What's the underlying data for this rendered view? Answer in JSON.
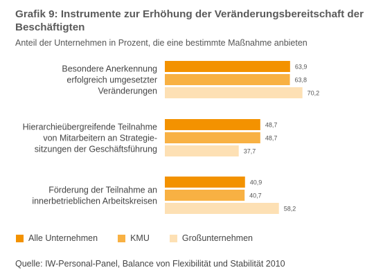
{
  "title": "Grafik 9: Instrumente zur Erhöhung der Veränderungsbereitschaft der Beschäftigten",
  "subtitle": "Anteil der Unternehmen in Prozent, die eine bestimmte Maßnahme anbieten",
  "source": "Quelle: IW-Personal-Panel, Balance von Flexibilität und Stabilität 2010",
  "chart_data": {
    "type": "bar",
    "orientation": "horizontal",
    "title": "Grafik 9: Instrumente zur Erhöhung der Veränderungsbereitschaft der Beschäftigten",
    "subtitle": "Anteil der Unternehmen in Prozent, die eine bestimmte Maßnahme anbieten",
    "categories": [
      [
        "Besondere Anerkennung",
        "erfolgreich umgesetzter",
        "Veränderungen"
      ],
      [
        "Hierarchieübergreifende Teilnahme",
        "von Mitarbeitern an Strategie-",
        "sitzungen der Geschäftsführung"
      ],
      [
        "Förderung der Teilnahme an",
        "innerbetrieblichen Arbeitskreisen"
      ]
    ],
    "series": [
      {
        "name": "Alle Unternehmen",
        "color": "#f39200",
        "values": [
          63.9,
          48.7,
          40.9
        ],
        "labels": [
          "63,9",
          "48,7",
          "40,9"
        ]
      },
      {
        "name": "KMU",
        "color": "#f8b143",
        "values": [
          63.8,
          48.7,
          40.7
        ],
        "labels": [
          "63,8",
          "48,7",
          "40,7"
        ]
      },
      {
        "name": "Großunternehmen",
        "color": "#fde0b4",
        "values": [
          70.2,
          37.7,
          58.2
        ],
        "labels": [
          "70,2",
          "37,7",
          "58,2"
        ]
      }
    ],
    "xlim": [
      0,
      100
    ],
    "grid": false,
    "legend_position": "bottom-left"
  }
}
